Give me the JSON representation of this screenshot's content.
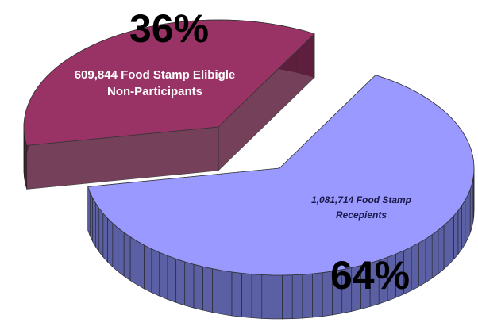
{
  "chart_data": {
    "type": "pie",
    "categories": [
      "609,844 Food Stamp Elibigle Non-Participants",
      "1,081,714 Food Stamp Recepients"
    ],
    "values": [
      36,
      64
    ],
    "value_labels": [
      "36%",
      "64%"
    ],
    "colors": [
      "#993366",
      "#9999ff"
    ],
    "side_colors": [
      "#5e1f3d",
      "#5b5fa3"
    ]
  }
}
